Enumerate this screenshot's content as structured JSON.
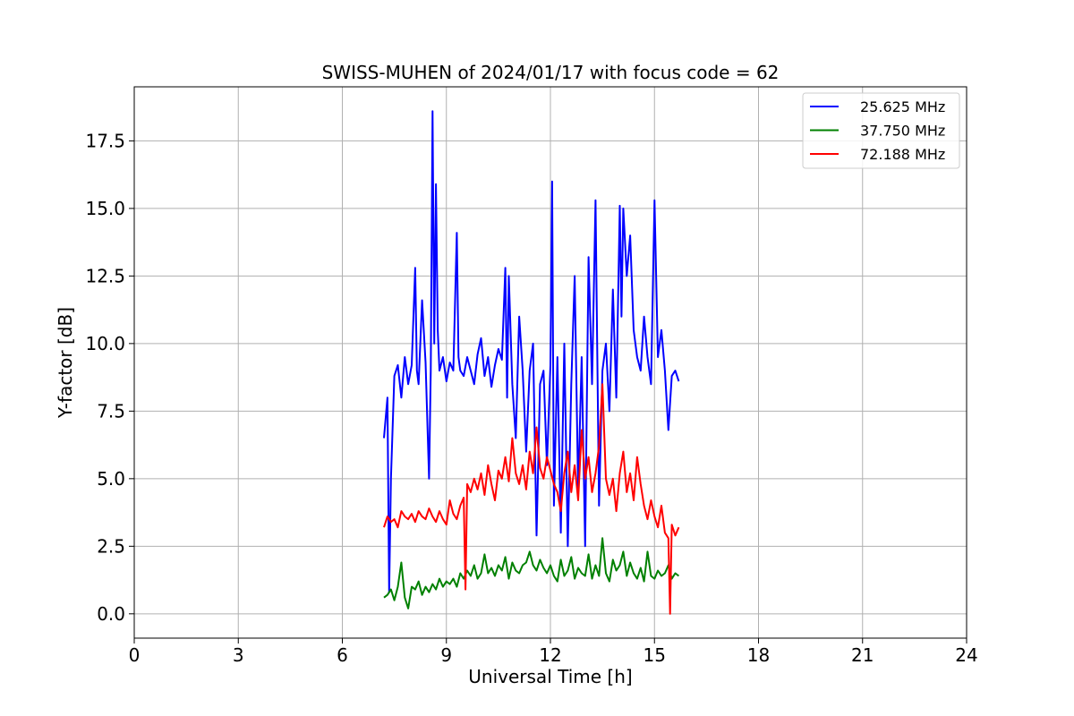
{
  "chart_data": {
    "type": "line",
    "title": "SWISS-MUHEN of 2024/01/17 with focus code = 62",
    "xlabel": "Universal Time [h]",
    "ylabel": "Y-factor [dB]",
    "xlim": [
      0,
      24
    ],
    "ylim": [
      -0.9,
      19.5
    ],
    "xticks": [
      0,
      3,
      6,
      9,
      12,
      15,
      18,
      21,
      24
    ],
    "xtick_labels": [
      "0",
      "3",
      "6",
      "9",
      "12",
      "15",
      "18",
      "21",
      "24"
    ],
    "yticks": [
      0.0,
      2.5,
      5.0,
      7.5,
      10.0,
      12.5,
      15.0,
      17.5
    ],
    "ytick_labels": [
      "0.0",
      "2.5",
      "5.0",
      "7.5",
      "10.0",
      "12.5",
      "15.0",
      "17.5"
    ],
    "grid": true,
    "legend_position": "top-right",
    "series": [
      {
        "name": "25.625 MHz",
        "color": "#0000ff",
        "x": [
          7.2,
          7.3,
          7.35,
          7.4,
          7.5,
          7.6,
          7.7,
          7.8,
          7.9,
          8.0,
          8.1,
          8.15,
          8.2,
          8.3,
          8.4,
          8.5,
          8.55,
          8.6,
          8.65,
          8.7,
          8.75,
          8.8,
          8.9,
          9.0,
          9.1,
          9.2,
          9.3,
          9.35,
          9.4,
          9.5,
          9.6,
          9.7,
          9.8,
          9.9,
          10.0,
          10.1,
          10.2,
          10.3,
          10.4,
          10.5,
          10.6,
          10.7,
          10.75,
          10.8,
          10.9,
          11.0,
          11.1,
          11.2,
          11.3,
          11.4,
          11.5,
          11.6,
          11.7,
          11.8,
          11.9,
          12.0,
          12.05,
          12.1,
          12.2,
          12.3,
          12.4,
          12.5,
          12.6,
          12.7,
          12.8,
          12.9,
          13.0,
          13.1,
          13.2,
          13.3,
          13.4,
          13.5,
          13.6,
          13.7,
          13.8,
          13.9,
          14.0,
          14.05,
          14.1,
          14.2,
          14.3,
          14.4,
          14.5,
          14.6,
          14.7,
          14.8,
          14.9,
          15.0,
          15.1,
          15.2,
          15.3,
          15.4,
          15.5,
          15.6,
          15.7
        ],
        "y": [
          6.5,
          8.0,
          0.8,
          5.0,
          8.8,
          9.2,
          8.0,
          9.5,
          8.5,
          9.2,
          12.8,
          9.0,
          8.5,
          11.6,
          9.3,
          5.0,
          9.0,
          18.6,
          10.0,
          15.9,
          10.5,
          9.0,
          9.5,
          8.6,
          9.3,
          9.0,
          14.1,
          9.5,
          9.0,
          8.8,
          9.5,
          9.0,
          8.5,
          9.6,
          10.2,
          8.8,
          9.5,
          8.4,
          9.2,
          9.8,
          9.4,
          12.8,
          8.0,
          12.5,
          8.5,
          6.5,
          11.0,
          9.0,
          6.0,
          9.0,
          10.0,
          2.9,
          8.5,
          9.0,
          5.5,
          9.2,
          16.0,
          4.0,
          9.5,
          3.0,
          10.0,
          2.5,
          8.5,
          12.5,
          4.5,
          9.5,
          2.5,
          13.2,
          8.5,
          15.3,
          4.0,
          9.0,
          10.0,
          7.5,
          12.0,
          8.0,
          15.1,
          11.0,
          15.0,
          12.5,
          14.0,
          10.5,
          9.5,
          9.0,
          11.0,
          9.5,
          8.5,
          15.3,
          9.5,
          10.5,
          9.0,
          6.8,
          8.8,
          9.0,
          8.6
        ]
      },
      {
        "name": "37.750 MHz",
        "color": "#008000",
        "x": [
          7.2,
          7.3,
          7.4,
          7.5,
          7.6,
          7.7,
          7.8,
          7.9,
          8.0,
          8.1,
          8.2,
          8.3,
          8.4,
          8.5,
          8.6,
          8.7,
          8.8,
          8.9,
          9.0,
          9.1,
          9.2,
          9.3,
          9.4,
          9.5,
          9.6,
          9.7,
          9.8,
          9.9,
          10.0,
          10.1,
          10.2,
          10.3,
          10.4,
          10.5,
          10.6,
          10.7,
          10.8,
          10.9,
          11.0,
          11.1,
          11.2,
          11.3,
          11.4,
          11.5,
          11.6,
          11.7,
          11.8,
          11.9,
          12.0,
          12.1,
          12.2,
          12.3,
          12.4,
          12.5,
          12.6,
          12.7,
          12.8,
          12.9,
          13.0,
          13.1,
          13.2,
          13.3,
          13.4,
          13.5,
          13.6,
          13.7,
          13.8,
          13.9,
          14.0,
          14.1,
          14.2,
          14.3,
          14.4,
          14.5,
          14.6,
          14.7,
          14.8,
          14.9,
          15.0,
          15.1,
          15.2,
          15.3,
          15.4,
          15.5,
          15.6,
          15.7
        ],
        "y": [
          0.6,
          0.7,
          0.9,
          0.5,
          1.0,
          1.9,
          0.6,
          0.2,
          1.0,
          0.9,
          1.2,
          0.7,
          1.0,
          0.8,
          1.1,
          0.9,
          1.3,
          1.0,
          1.2,
          1.1,
          1.3,
          1.0,
          1.5,
          1.3,
          1.6,
          1.4,
          1.8,
          1.3,
          1.5,
          2.2,
          1.5,
          1.7,
          1.4,
          1.8,
          1.6,
          2.1,
          1.3,
          1.9,
          1.6,
          1.5,
          1.8,
          1.9,
          2.3,
          1.8,
          1.6,
          2.0,
          1.7,
          1.5,
          1.8,
          1.4,
          1.2,
          2.0,
          1.4,
          1.6,
          2.1,
          1.3,
          1.7,
          1.5,
          1.4,
          2.2,
          1.3,
          1.8,
          1.4,
          2.8,
          1.5,
          1.2,
          2.0,
          1.6,
          1.8,
          2.3,
          1.4,
          1.9,
          1.5,
          1.3,
          1.7,
          1.2,
          2.3,
          1.4,
          1.3,
          1.6,
          1.4,
          1.5,
          1.8,
          1.3,
          1.5,
          1.4
        ]
      },
      {
        "name": "72.188 MHz",
        "color": "#ff0000",
        "x": [
          7.2,
          7.3,
          7.4,
          7.5,
          7.6,
          7.7,
          7.8,
          7.9,
          8.0,
          8.1,
          8.2,
          8.3,
          8.4,
          8.5,
          8.6,
          8.7,
          8.8,
          8.9,
          9.0,
          9.1,
          9.2,
          9.3,
          9.4,
          9.5,
          9.55,
          9.6,
          9.7,
          9.8,
          9.9,
          10.0,
          10.1,
          10.2,
          10.3,
          10.4,
          10.5,
          10.6,
          10.7,
          10.8,
          10.9,
          11.0,
          11.1,
          11.2,
          11.3,
          11.4,
          11.5,
          11.6,
          11.7,
          11.8,
          11.9,
          12.0,
          12.1,
          12.2,
          12.3,
          12.4,
          12.5,
          12.6,
          12.7,
          12.8,
          12.9,
          13.0,
          13.1,
          13.2,
          13.3,
          13.4,
          13.5,
          13.6,
          13.7,
          13.8,
          13.9,
          14.0,
          14.1,
          14.2,
          14.3,
          14.4,
          14.5,
          14.6,
          14.7,
          14.8,
          14.9,
          15.0,
          15.1,
          15.2,
          15.3,
          15.4,
          15.45,
          15.5,
          15.6,
          15.7
        ],
        "y": [
          3.2,
          3.6,
          3.4,
          3.5,
          3.2,
          3.8,
          3.6,
          3.5,
          3.7,
          3.4,
          3.8,
          3.6,
          3.5,
          3.9,
          3.6,
          3.4,
          3.8,
          3.5,
          3.3,
          4.2,
          3.7,
          3.5,
          4.0,
          4.3,
          0.9,
          4.8,
          4.5,
          5.0,
          4.6,
          5.2,
          4.4,
          5.5,
          4.8,
          4.2,
          5.3,
          5.0,
          5.8,
          4.9,
          6.5,
          5.2,
          4.8,
          5.5,
          4.6,
          6.0,
          5.2,
          6.9,
          5.4,
          5.0,
          5.8,
          5.3,
          4.8,
          4.5,
          3.8,
          5.2,
          6.0,
          4.5,
          5.5,
          4.2,
          6.8,
          5.0,
          5.8,
          4.5,
          5.2,
          6.2,
          8.5,
          5.0,
          4.4,
          5.0,
          3.8,
          5.2,
          6.0,
          4.5,
          5.2,
          4.2,
          5.8,
          4.8,
          4.0,
          3.5,
          4.2,
          3.6,
          3.2,
          4.0,
          3.0,
          2.8,
          0.0,
          3.3,
          2.9,
          3.2
        ]
      }
    ]
  }
}
